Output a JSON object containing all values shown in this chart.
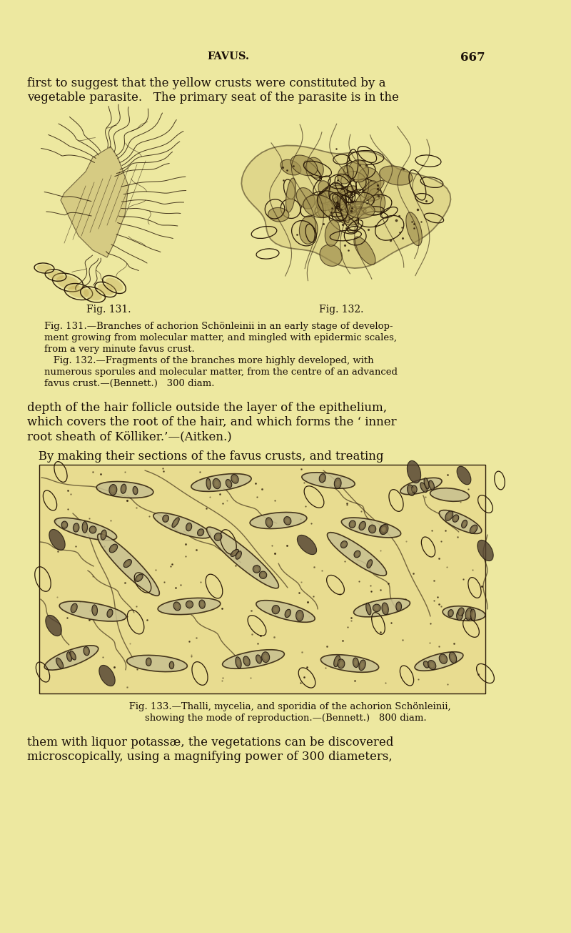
{
  "background_color": "#ede8a0",
  "text_color": "#1a1008",
  "header_title": "FAVUS.",
  "page_number": "667",
  "para1_line1": "first to suggest that the yellow crusts were constituted by a",
  "para1_line2": "vegetable parasite.   The primary seat of the parasite is in the",
  "fig131_label": "Fig. 131.",
  "fig132_label": "Fig. 132.",
  "cap131_1": "Fig. 131.—Branches of achorion Schönleinii in an early stage of develop-",
  "cap131_2": "ment growing from molecular matter, and mingled with epidermic scales,",
  "cap131_3": "from a very minute favus crust.",
  "cap132_1": "   Fig. 132.—Fragments of the branches more highly developed, with",
  "cap132_2": "numerous sporules and molecular matter, from the centre of an advanced",
  "cap132_3": "favus crust.—(Bennett.)   300 diam.",
  "para2_1": "depth of the hair follicle outside the layer of the epithelium,",
  "para2_2": "which covers the root of the hair, and which forms the ‘ inner",
  "para2_3": "root sheath of Kölliker.’—(Aitken.)",
  "para3_1": "   By making their sections of the favus crusts, and treating",
  "fig133_cap1": "   Fig. 133.—Thalli, mycelia, and sporidia of the achorion Schönleinii,",
  "fig133_cap2": "showing the mode of reproduction.—(Bennett.)   800 diam.",
  "para4_1": "them with liquor potassæ, the vegetations can be discovered",
  "para4_2": "microscopically, using a magnifying power of 300 diameters,",
  "dpi": 100,
  "fig_width": 8.0,
  "fig_height": 13.05
}
